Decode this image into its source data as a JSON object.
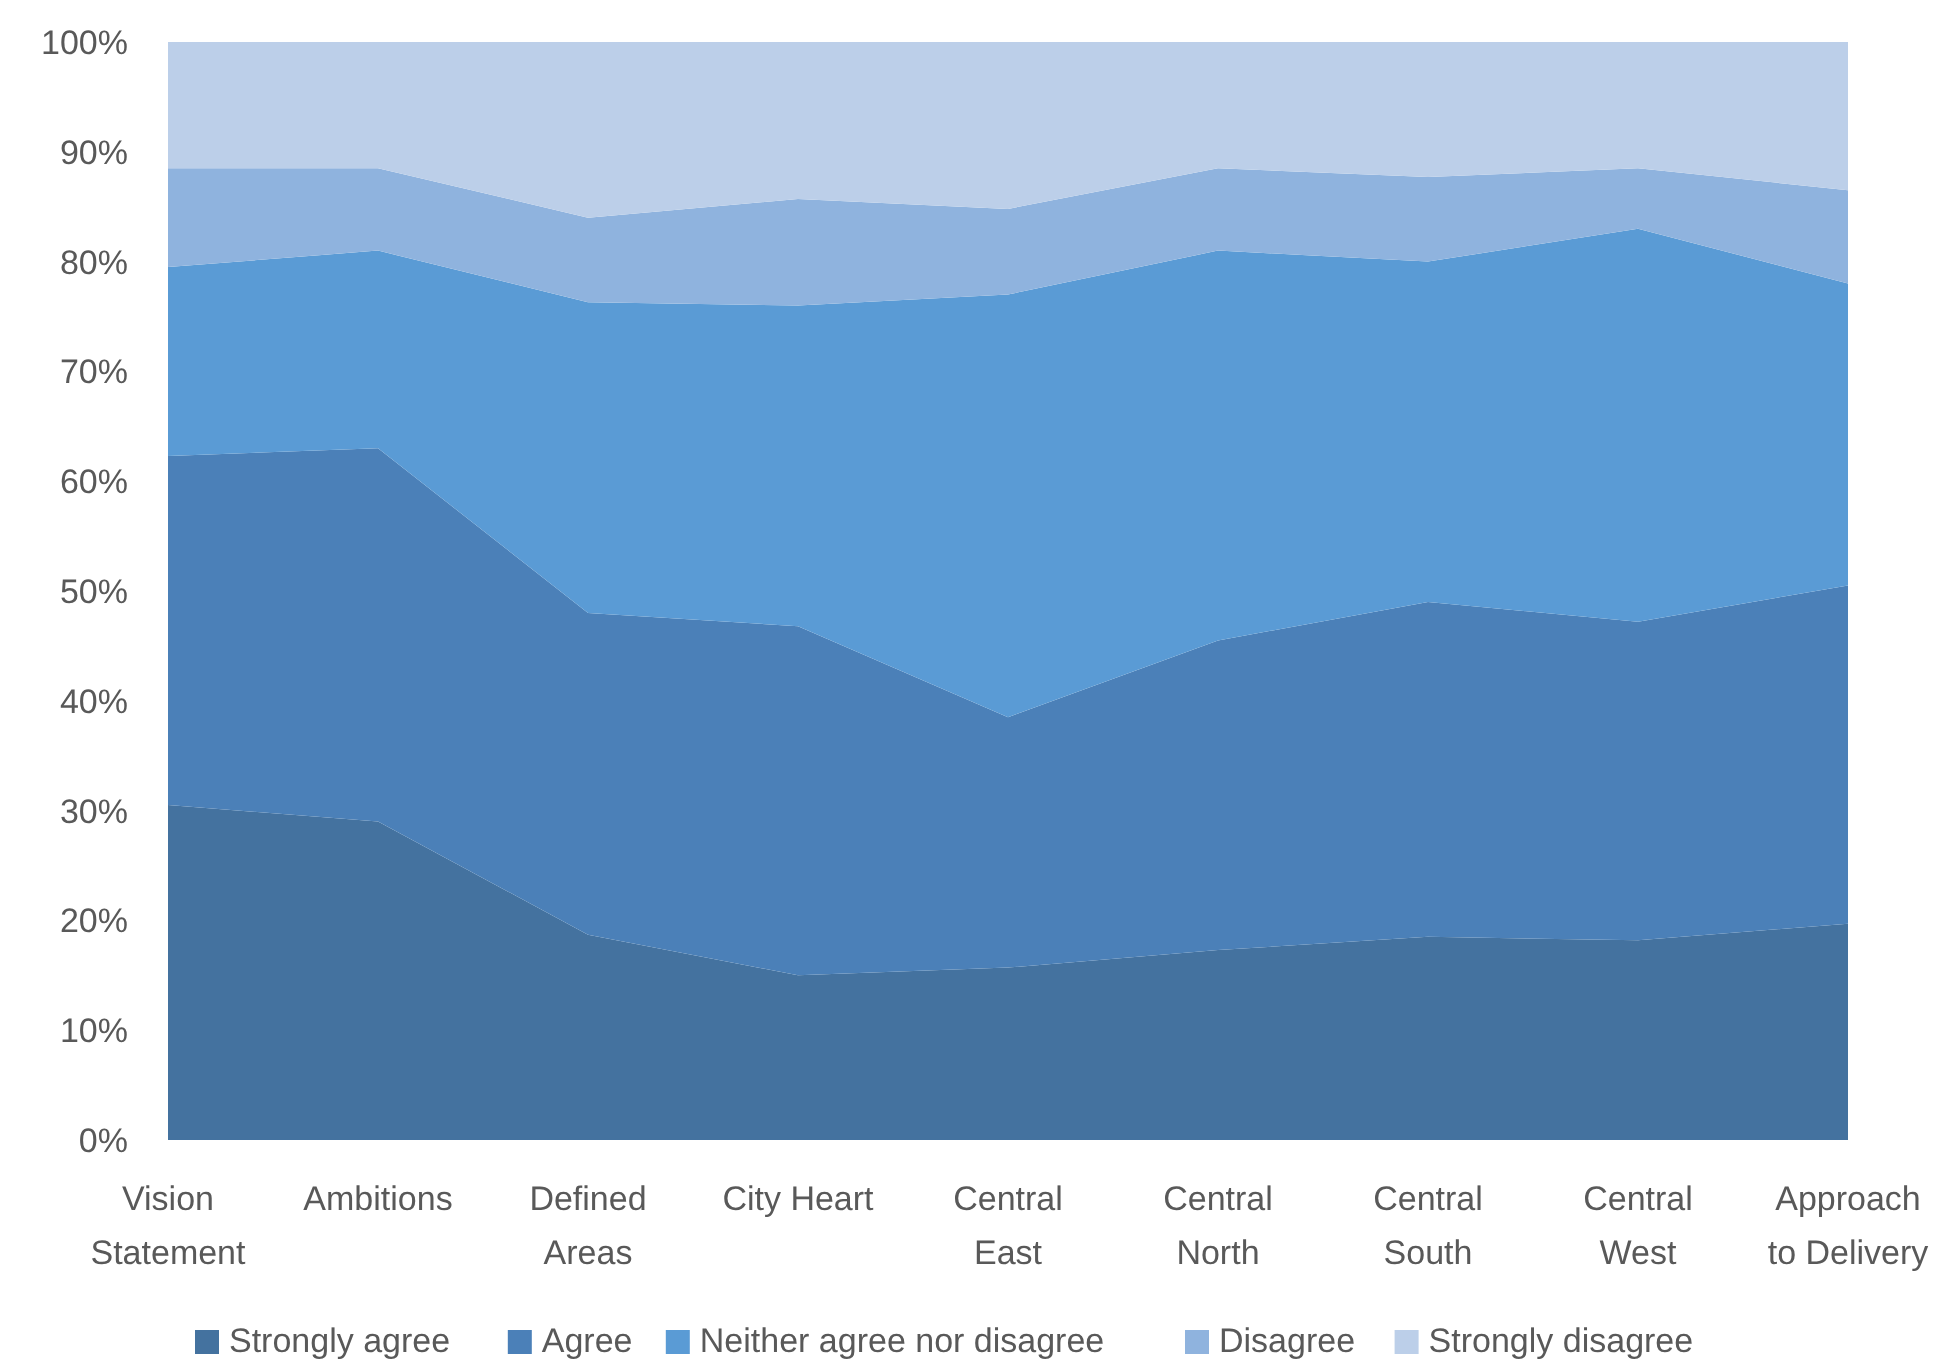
{
  "chart_data": {
    "type": "area",
    "stacked": true,
    "categories": [
      "Vision Statement",
      "Ambitions",
      "Defined Areas",
      "City Heart",
      "Central East",
      "Central North",
      "Central South",
      "Central West",
      "Approach to Delivery"
    ],
    "series": [
      {
        "name": "Strongly agree",
        "color": "#44729f",
        "values": [
          30.5,
          29,
          18.7,
          15,
          15.7,
          17.3,
          18.5,
          18.2,
          19.7
        ]
      },
      {
        "name": "Agree",
        "color": "#4b80b8",
        "values": [
          31.8,
          34,
          29.3,
          31.8,
          22.8,
          28.2,
          30.5,
          29,
          30.8
        ]
      },
      {
        "name": "Neither agree nor disagree",
        "color": "#5a9bd5",
        "values": [
          17.2,
          18,
          28.3,
          29.2,
          38.5,
          35.5,
          31,
          35.8,
          27.5
        ]
      },
      {
        "name": "Disagree",
        "color": "#8fb3de",
        "values": [
          9,
          7.5,
          7.7,
          9.7,
          7.8,
          7.5,
          7.7,
          5.5,
          8.5
        ]
      },
      {
        "name": "Strongly disagree",
        "color": "#bccfe9",
        "values": [
          11.5,
          11.5,
          16,
          14.3,
          15.2,
          11.5,
          12.3,
          11.5,
          13.5
        ]
      }
    ],
    "ylim": [
      0,
      100
    ],
    "yticks": [
      {
        "value": 0,
        "label": "0%"
      },
      {
        "value": 10,
        "label": "10%"
      },
      {
        "value": 20,
        "label": "20%"
      },
      {
        "value": 30,
        "label": "30%"
      },
      {
        "value": 40,
        "label": "40%"
      },
      {
        "value": 50,
        "label": "50%"
      },
      {
        "value": 60,
        "label": "60%"
      },
      {
        "value": 70,
        "label": "70%"
      },
      {
        "value": 80,
        "label": "80%"
      },
      {
        "value": 90,
        "label": "90%"
      },
      {
        "value": 100,
        "label": "100%"
      }
    ],
    "grid": false,
    "legend": "bottom"
  }
}
